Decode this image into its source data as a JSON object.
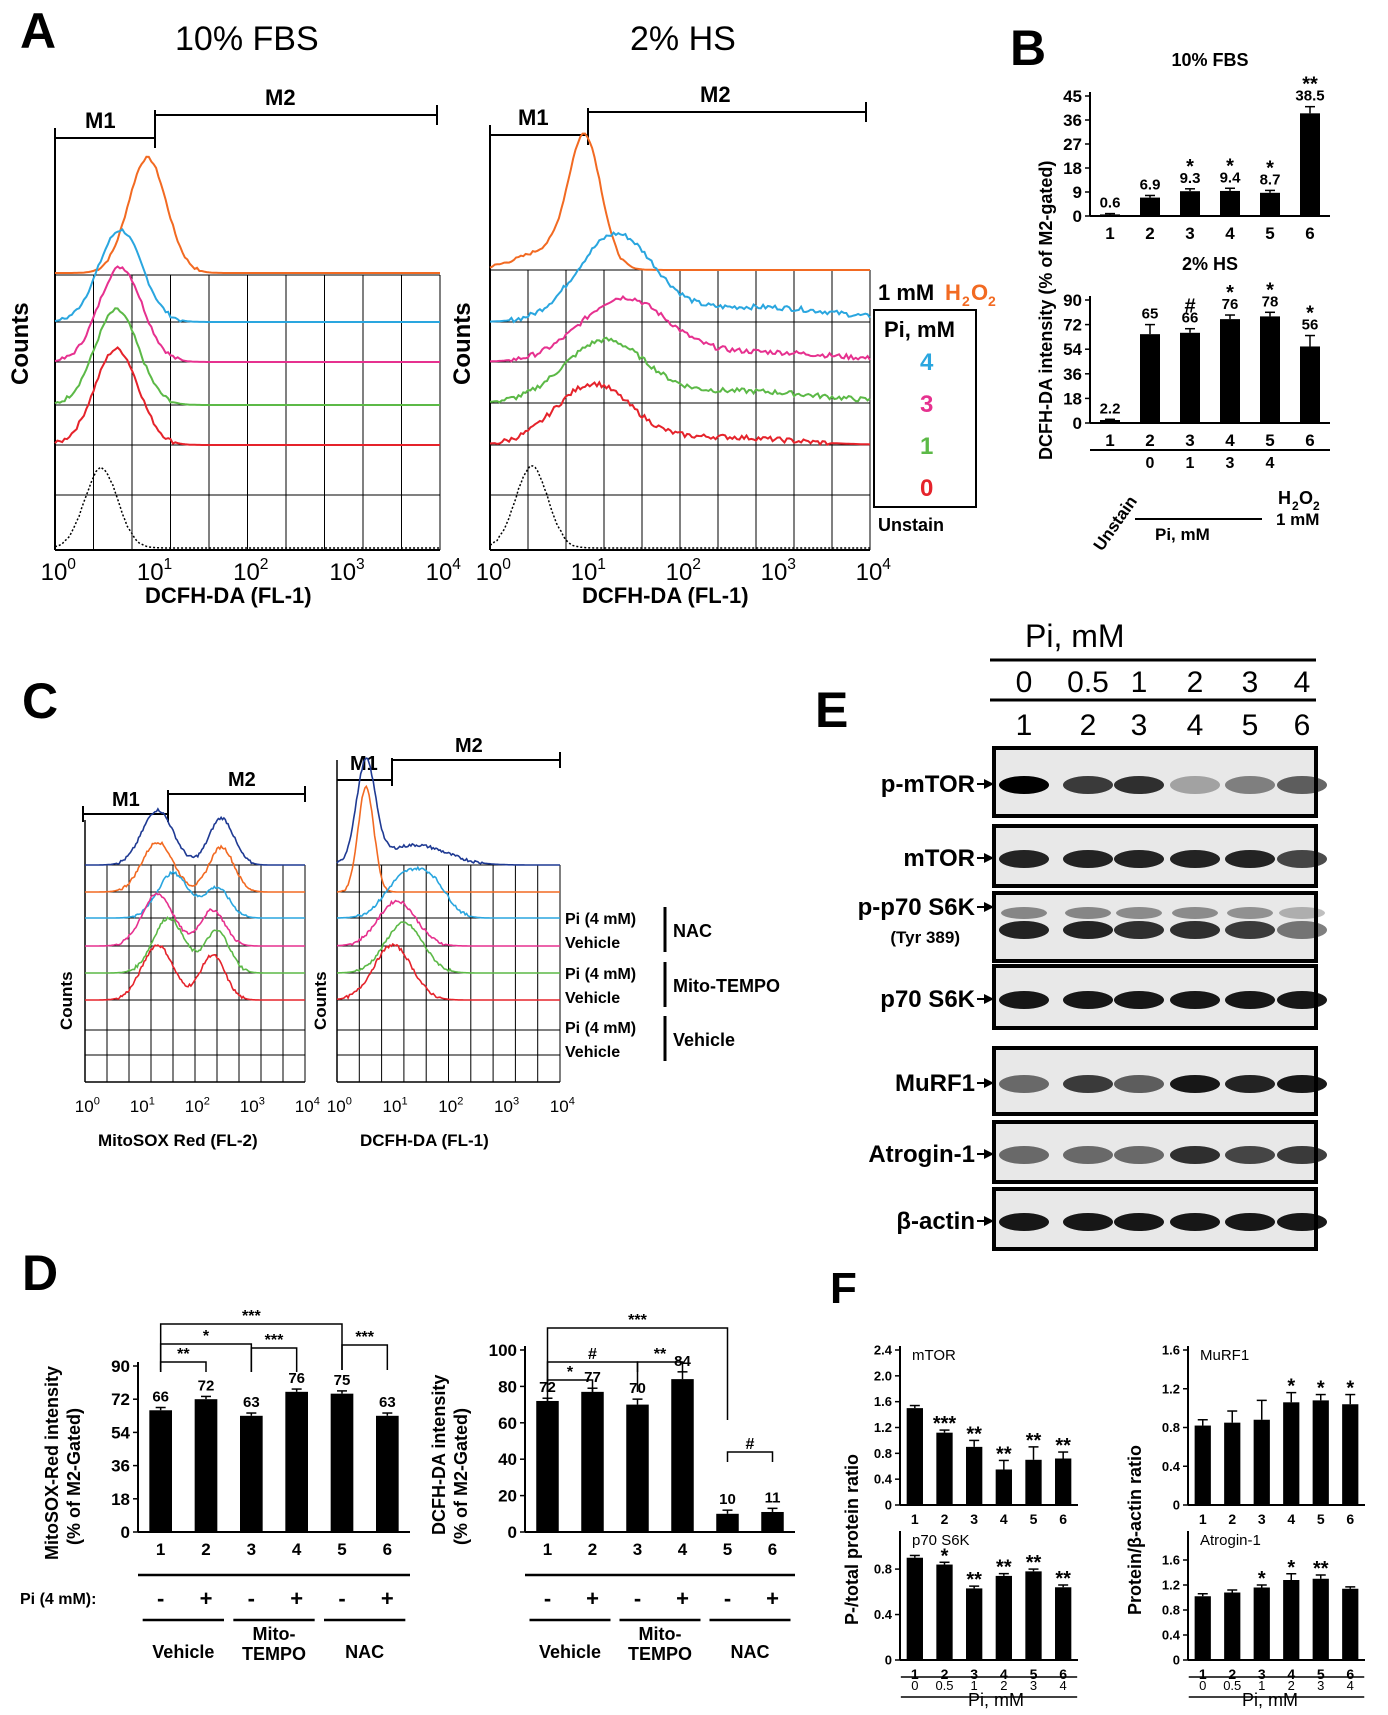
{
  "panels": {
    "A": {
      "letter": "A",
      "left_title": "10% FBS",
      "right_title": "2% HS",
      "gate_m1": "M1",
      "gate_m2": "M2",
      "ylabel": "Counts",
      "xlabel": "DCFH-DA (FL-1)",
      "x_ticks": [
        "0",
        "1",
        "2",
        "3",
        "4"
      ],
      "x_tick_base": "10",
      "legend": {
        "h2o2_prefix": "1 mM ",
        "h2o2_label": "H",
        "h2o2_sub1": "2",
        "h2o2_o": "O",
        "h2o2_sub2": "2",
        "pi_title": "Pi, mM",
        "levels": [
          "4",
          "3",
          "1",
          "0"
        ],
        "unstain": "Unstain"
      },
      "colors": {
        "h2o2": "#f26a22",
        "pi4": "#2aa6df",
        "pi3": "#e6318f",
        "pi1": "#5cb947",
        "pi0": "#e5232b",
        "unstain": "#000000"
      }
    },
    "B": {
      "letter": "B",
      "ylabel": "DCFH-DA intensity (% of M2-gated)",
      "unstain_label": "Unstain",
      "pi_label": "Pi, mM",
      "pi_values": [
        "0",
        "1",
        "3",
        "4"
      ],
      "h2o2_label": "H",
      "h2o2_sub": "2",
      "h2o2_o": "O",
      "h2o2_sub2": "2",
      "h2o2_dose": "1 mM"
    },
    "C": {
      "letter": "C",
      "gate_m1": "M1",
      "gate_m2": "M2",
      "ylabel": "Counts",
      "left_xlabel": "MitoSOX Red (FL-2)",
      "right_xlabel": "DCFH-DA (FL-1)",
      "legend_rows": [
        {
          "pi": "Pi (4 mM)",
          "vehicle": "Vehicle",
          "group": "NAC"
        },
        {
          "pi": "Pi (4 mM)",
          "vehicle": "Vehicle",
          "group": "Mito-TEMPO"
        },
        {
          "pi": "Pi (4 mM)",
          "vehicle": "Vehicle",
          "group": "Vehicle"
        }
      ]
    },
    "D": {
      "letter": "D",
      "left_ylabel_1": "MitoSOX-Red intensity",
      "left_ylabel_2": "(% of M2-Gated)",
      "right_ylabel_1": "DCFH-DA intensity",
      "right_ylabel_2": "(% of M2-Gated)",
      "pi_row_label": "Pi (4 mM):",
      "signs": [
        "-",
        "+",
        "-",
        "+",
        "-",
        "+"
      ],
      "groups": [
        "Vehicle",
        "Mito-",
        "TEMPO",
        "NAC"
      ]
    },
    "E": {
      "letter": "E",
      "header": "Pi, mM",
      "concentrations": [
        "0",
        "0.5",
        "1",
        "2",
        "3",
        "4"
      ],
      "lanes": [
        "1",
        "2",
        "3",
        "4",
        "5",
        "6"
      ],
      "blots": [
        "p-mTOR",
        "mTOR",
        "p-p70 S6K",
        "p70 S6K",
        "MuRF1",
        "Atrogin-1",
        "β-actin"
      ],
      "blot_sublabel": "(Tyr 389)"
    },
    "F": {
      "letter": "F",
      "left_ylabel": "P-/total protein ratio",
      "right_ylabel": "Protein/β-actin ratio",
      "concentrations": [
        "0",
        "0.5",
        "1",
        "2",
        "3",
        "4"
      ],
      "xlabel": "Pi, mM"
    }
  },
  "chart_data": [
    {
      "id": "B1",
      "type": "bar",
      "title": "10% FBS",
      "categories": [
        "1",
        "2",
        "3",
        "4",
        "5",
        "6"
      ],
      "values": [
        0.6,
        6.9,
        9.3,
        9.4,
        8.7,
        38.5
      ],
      "errors": [
        0.3,
        0.8,
        0.9,
        1.0,
        0.9,
        2.5
      ],
      "value_labels": [
        "0.6",
        "6.9",
        "9.3",
        "9.4",
        "8.7",
        "38.5"
      ],
      "significance": [
        "",
        "",
        "*",
        "*",
        "*",
        "**"
      ],
      "yticks": [
        "0",
        "9",
        "18",
        "27",
        "36",
        "45"
      ],
      "ylim": [
        0,
        45
      ]
    },
    {
      "id": "B2",
      "type": "bar",
      "title": "2% HS",
      "categories": [
        "1",
        "2",
        "3",
        "4",
        "5",
        "6"
      ],
      "values": [
        2.2,
        65,
        66,
        76,
        78,
        56
      ],
      "errors": [
        0.5,
        7,
        3,
        3,
        3,
        8
      ],
      "value_labels": [
        "2.2",
        "65",
        "66",
        "76",
        "78",
        "56"
      ],
      "significance": [
        "",
        "",
        "#",
        "*",
        "*",
        "*"
      ],
      "yticks": [
        "0",
        "18",
        "36",
        "54",
        "72",
        "90"
      ],
      "ylim": [
        0,
        90
      ]
    },
    {
      "id": "D1",
      "type": "bar",
      "categories": [
        "1",
        "2",
        "3",
        "4",
        "5",
        "6"
      ],
      "values": [
        66,
        72,
        63,
        76,
        75,
        63
      ],
      "errors": [
        1.5,
        1.5,
        1.5,
        1.5,
        1.5,
        1.5
      ],
      "value_labels": [
        "66",
        "72",
        "63",
        "76",
        "75",
        "63"
      ],
      "yticks": [
        "0",
        "18",
        "36",
        "54",
        "72",
        "90"
      ],
      "ylim": [
        0,
        90
      ],
      "brackets": [
        {
          "from": 1,
          "to": 2,
          "label": "**"
        },
        {
          "from": 1,
          "to": 3,
          "label": "*"
        },
        {
          "from": 1,
          "to": 5,
          "label": "***"
        },
        {
          "from": 3,
          "to": 4,
          "label": "***"
        },
        {
          "from": 5,
          "to": 6,
          "label": "***"
        }
      ]
    },
    {
      "id": "D2",
      "type": "bar",
      "categories": [
        "1",
        "2",
        "3",
        "4",
        "5",
        "6"
      ],
      "values": [
        72,
        77,
        70,
        84,
        10,
        11
      ],
      "errors": [
        1.5,
        2,
        3,
        4,
        2,
        2
      ],
      "value_labels": [
        "72",
        "77",
        "70",
        "84",
        "10",
        "11"
      ],
      "yticks": [
        "0",
        "20",
        "40",
        "60",
        "80",
        "100"
      ],
      "ylim": [
        0,
        100
      ],
      "brackets": [
        {
          "from": 1,
          "to": 2,
          "label": "*"
        },
        {
          "from": 1,
          "to": 3,
          "label": "#"
        },
        {
          "from": 1,
          "to": 5,
          "label": "***"
        },
        {
          "from": 3,
          "to": 4,
          "label": "**"
        },
        {
          "from": 5,
          "to": 6,
          "label": "#"
        }
      ]
    },
    {
      "id": "F1",
      "type": "bar",
      "inner_label": "mTOR",
      "categories": [
        "1",
        "2",
        "3",
        "4",
        "5",
        "6"
      ],
      "values": [
        1.5,
        1.12,
        0.9,
        0.55,
        0.7,
        0.72
      ],
      "errors": [
        0.04,
        0.04,
        0.1,
        0.14,
        0.2,
        0.1
      ],
      "significance": [
        "",
        "***",
        "**",
        "**",
        "**",
        "**"
      ],
      "yticks": [
        "0",
        "0.4",
        "0.8",
        "1.2",
        "1.6",
        "2.0",
        "2.4"
      ],
      "ylim": [
        0,
        2.4
      ]
    },
    {
      "id": "F2",
      "type": "bar",
      "inner_label": "MuRF1",
      "categories": [
        "1",
        "2",
        "3",
        "4",
        "5",
        "6"
      ],
      "values": [
        0.82,
        0.85,
        0.88,
        1.06,
        1.08,
        1.04
      ],
      "errors": [
        0.06,
        0.12,
        0.2,
        0.1,
        0.06,
        0.1
      ],
      "significance": [
        "",
        "",
        "",
        "*",
        "*",
        "*"
      ],
      "yticks": [
        "0",
        "0.4",
        "0.8",
        "1.2",
        "1.6"
      ],
      "ylim": [
        0,
        1.6
      ]
    },
    {
      "id": "F3",
      "type": "bar",
      "inner_label": "p70 S6K",
      "categories": [
        "1",
        "2",
        "3",
        "4",
        "5",
        "6"
      ],
      "values": [
        0.9,
        0.84,
        0.63,
        0.74,
        0.78,
        0.64
      ],
      "errors": [
        0.02,
        0.02,
        0.02,
        0.02,
        0.02,
        0.02
      ],
      "significance": [
        "",
        "*",
        "**",
        "**",
        "**",
        "**"
      ],
      "yticks": [
        "0",
        "0.4",
        "0.8"
      ],
      "ylim": [
        0,
        1.1
      ]
    },
    {
      "id": "F4",
      "type": "bar",
      "inner_label": "Atrogin-1",
      "categories": [
        "1",
        "2",
        "3",
        "4",
        "5",
        "6"
      ],
      "values": [
        1.02,
        1.08,
        1.16,
        1.28,
        1.3,
        1.14
      ],
      "errors": [
        0.04,
        0.04,
        0.04,
        0.1,
        0.06,
        0.03
      ],
      "significance": [
        "",
        "",
        "*",
        "*",
        "**",
        ""
      ],
      "yticks": [
        "0",
        "0.4",
        "0.8",
        "1.2",
        "1.6"
      ],
      "ylim": [
        0,
        2.0
      ]
    }
  ]
}
